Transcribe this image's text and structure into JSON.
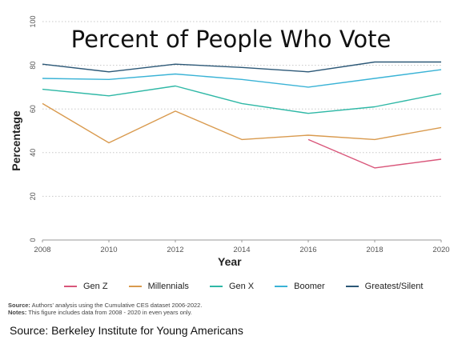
{
  "chart_data": {
    "type": "line",
    "title": "Percent of People Who Vote",
    "xlabel": "Year",
    "ylabel": "Percentage",
    "x": [
      2008,
      2010,
      2012,
      2014,
      2016,
      2018,
      2020
    ],
    "xticks": [
      "2008",
      "2010",
      "2012",
      "2014",
      "2016",
      "2018",
      "2020"
    ],
    "yticks": [
      "0",
      "20",
      "40",
      "60",
      "80",
      "100"
    ],
    "ylim": [
      0,
      100
    ],
    "grid": "horizontal dotted",
    "legend_position": "bottom",
    "series": [
      {
        "name": "Gen Z",
        "color": "#d9567a",
        "values": [
          null,
          null,
          null,
          null,
          46,
          33,
          37
        ]
      },
      {
        "name": "Millennials",
        "color": "#d99a4e",
        "values": [
          62.5,
          44.5,
          59,
          46,
          48,
          46,
          51.5
        ]
      },
      {
        "name": "Gen X",
        "color": "#2fb8a6",
        "values": [
          69,
          66,
          70.5,
          62.5,
          58,
          61,
          67
        ]
      },
      {
        "name": "Boomer",
        "color": "#3ab3d6",
        "values": [
          74,
          73.5,
          76,
          73.5,
          70,
          74,
          78
        ]
      },
      {
        "name": "Greatest/Silent",
        "color": "#2c5877",
        "values": [
          80.5,
          77,
          80.5,
          79,
          77,
          81.5,
          81.5
        ]
      }
    ]
  },
  "notes": {
    "source_label": "Source:",
    "source_text": " Authors' analysis using the Cumulative CES dataset 2006-2022.",
    "notes_label": "Notes:",
    "notes_text": " This figure includes data from 2008 - 2020 in even years only."
  },
  "footer_source": "Source: Berkeley Institute for Young Americans"
}
